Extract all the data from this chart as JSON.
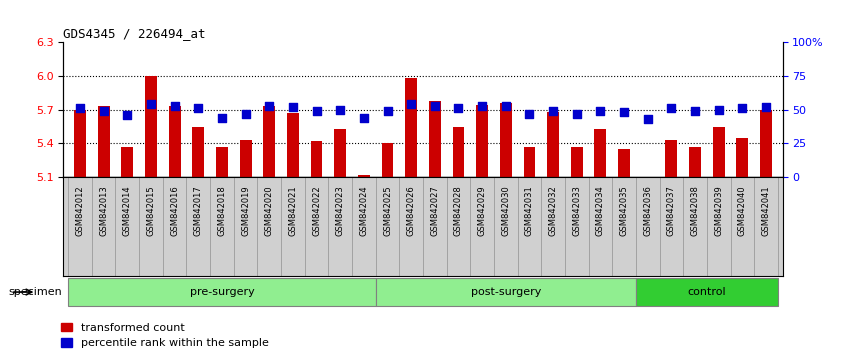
{
  "title": "GDS4345 / 226494_at",
  "samples": [
    "GSM842012",
    "GSM842013",
    "GSM842014",
    "GSM842015",
    "GSM842016",
    "GSM842017",
    "GSM842018",
    "GSM842019",
    "GSM842020",
    "GSM842021",
    "GSM842022",
    "GSM842023",
    "GSM842024",
    "GSM842025",
    "GSM842026",
    "GSM842027",
    "GSM842028",
    "GSM842029",
    "GSM842030",
    "GSM842031",
    "GSM842032",
    "GSM842033",
    "GSM842034",
    "GSM842035",
    "GSM842036",
    "GSM842037",
    "GSM842038",
    "GSM842039",
    "GSM842040",
    "GSM842041"
  ],
  "bar_values": [
    5.7,
    5.73,
    5.37,
    6.0,
    5.73,
    5.55,
    5.37,
    5.43,
    5.73,
    5.67,
    5.42,
    5.53,
    5.12,
    5.4,
    5.98,
    5.78,
    5.55,
    5.74,
    5.76,
    5.37,
    5.68,
    5.37,
    5.53,
    5.35,
    5.1,
    5.43,
    5.37,
    5.55,
    5.45,
    5.7
  ],
  "percentile_values": [
    51,
    49,
    46,
    54,
    53,
    51,
    44,
    47,
    53,
    52,
    49,
    50,
    44,
    49,
    54,
    53,
    51,
    53,
    53,
    47,
    49,
    47,
    49,
    48,
    43,
    51,
    49,
    50,
    51,
    52
  ],
  "groups": [
    {
      "label": "pre-surgery",
      "start": 0,
      "end": 13,
      "color": "#90EE90"
    },
    {
      "label": "post-surgery",
      "start": 13,
      "end": 24,
      "color": "#90EE90"
    },
    {
      "label": "control",
      "start": 24,
      "end": 30,
      "color": "#32CD32"
    }
  ],
  "bar_color": "#CC0000",
  "dot_color": "#0000CC",
  "ylim_left": [
    5.1,
    6.3
  ],
  "ylim_right": [
    0,
    100
  ],
  "yticks_left": [
    5.1,
    5.4,
    5.7,
    6.0,
    6.3
  ],
  "yticks_right": [
    0,
    25,
    50,
    75,
    100
  ],
  "ytick_labels_right": [
    "0",
    "25",
    "50",
    "75",
    "100%"
  ],
  "grid_lines": [
    6.0,
    5.7,
    5.4
  ],
  "specimen_label": "specimen"
}
